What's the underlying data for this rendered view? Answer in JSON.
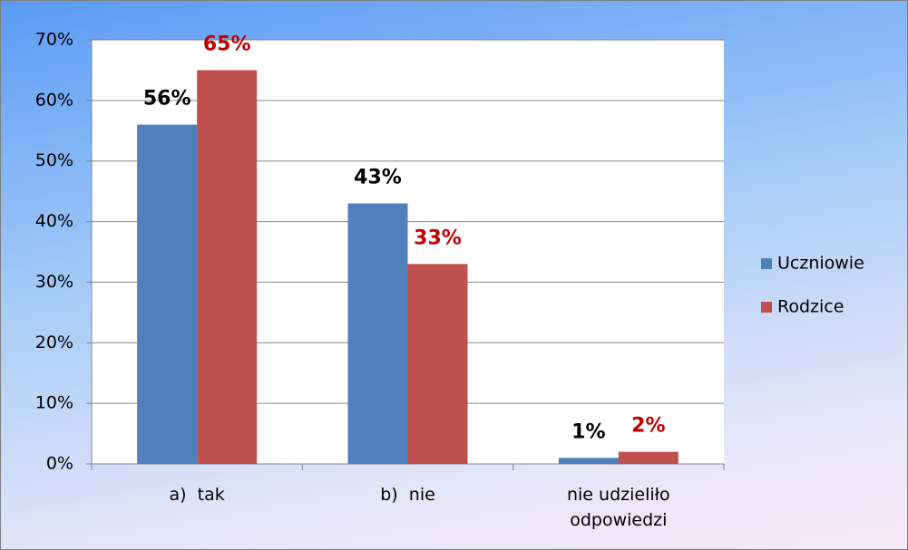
{
  "chart_data": {
    "type": "bar",
    "categories": [
      "a)  tak",
      "b)  nie",
      "nie udzieliło odpowiedzi"
    ],
    "series": [
      {
        "name": "Uczniowie",
        "color": "#4f81bd",
        "label_color": "#000000",
        "values": [
          56,
          43,
          1
        ],
        "value_labels": [
          "56%",
          "43%",
          "1%"
        ]
      },
      {
        "name": "Rodzice",
        "color": "#c0504d",
        "label_color": "#c00000",
        "values": [
          65,
          33,
          2
        ],
        "value_labels": [
          "65%",
          "33%",
          "2%"
        ]
      }
    ],
    "ylim": [
      0,
      70
    ],
    "yticks": [
      {
        "value": 0,
        "label": "0%"
      },
      {
        "value": 10,
        "label": "10%"
      },
      {
        "value": 20,
        "label": "20%"
      },
      {
        "value": 30,
        "label": "30%"
      },
      {
        "value": 40,
        "label": "40%"
      },
      {
        "value": 50,
        "label": "50%"
      },
      {
        "value": 60,
        "label": "60%"
      },
      {
        "value": 70,
        "label": "70%"
      }
    ],
    "grid": true,
    "legend": "right"
  }
}
